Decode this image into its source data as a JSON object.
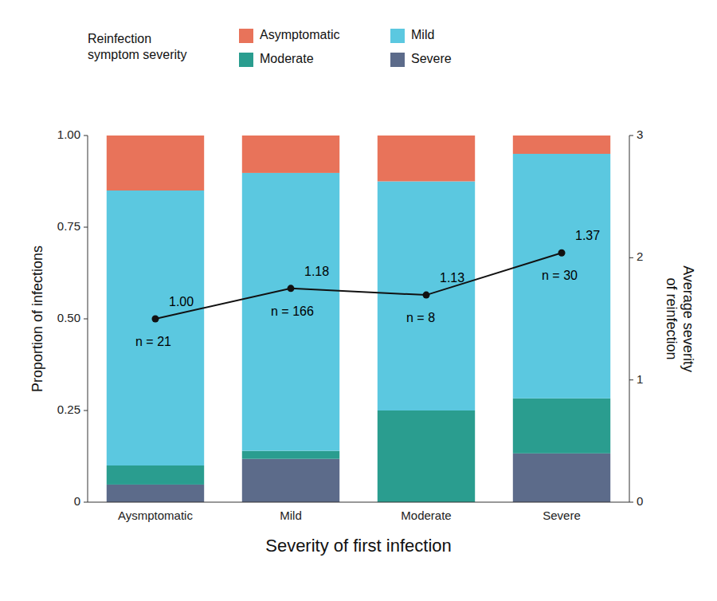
{
  "chart_data": {
    "type": "bar",
    "stacked": true,
    "grid": false,
    "legend": "top",
    "categories": [
      "Aysmptomatic",
      "Mild",
      "Moderate",
      "Severe"
    ],
    "xlabel": "Severity of first infection",
    "ylabel": "Proportion of infections",
    "y2label": "Average severity\nof reinfection",
    "legend_title": "Reinfection\nsymptom severity",
    "ylim": [
      0,
      1.0
    ],
    "yticks": [
      0,
      0.25,
      {
        "value": 0.5,
        "label": "0.50"
      },
      0.75,
      {
        "value": 1.0,
        "label": "1.00"
      }
    ],
    "y2lim": [
      0,
      3
    ],
    "y2ticks": [
      0,
      1,
      2,
      3
    ],
    "series": [
      {
        "name": "Severe",
        "type": "bar",
        "color": "#5c6b8a",
        "values": [
          0.048,
          0.118,
          0.0,
          0.133
        ]
      },
      {
        "name": "Moderate",
        "type": "bar",
        "color": "#2a9d8f",
        "values": [
          0.052,
          0.022,
          0.25,
          0.15
        ]
      },
      {
        "name": "Mild",
        "type": "bar",
        "color": "#5bc8e0",
        "values": [
          0.75,
          0.758,
          0.625,
          0.667
        ]
      },
      {
        "name": "Asymptomatic",
        "type": "bar",
        "color": "#e8735a",
        "values": [
          0.15,
          0.102,
          0.125,
          0.05
        ]
      },
      {
        "type": "line",
        "color": "#111111",
        "marker": "circle",
        "line_style": "solid",
        "values": [
          0.5,
          0.583,
          0.565,
          0.68
        ],
        "avg_severity_labels": [
          "1.00",
          "1.18",
          "1.13",
          "1.37"
        ],
        "n_labels": [
          "n = 21",
          "n = 166",
          "n = 8",
          "n = 30"
        ]
      }
    ]
  }
}
